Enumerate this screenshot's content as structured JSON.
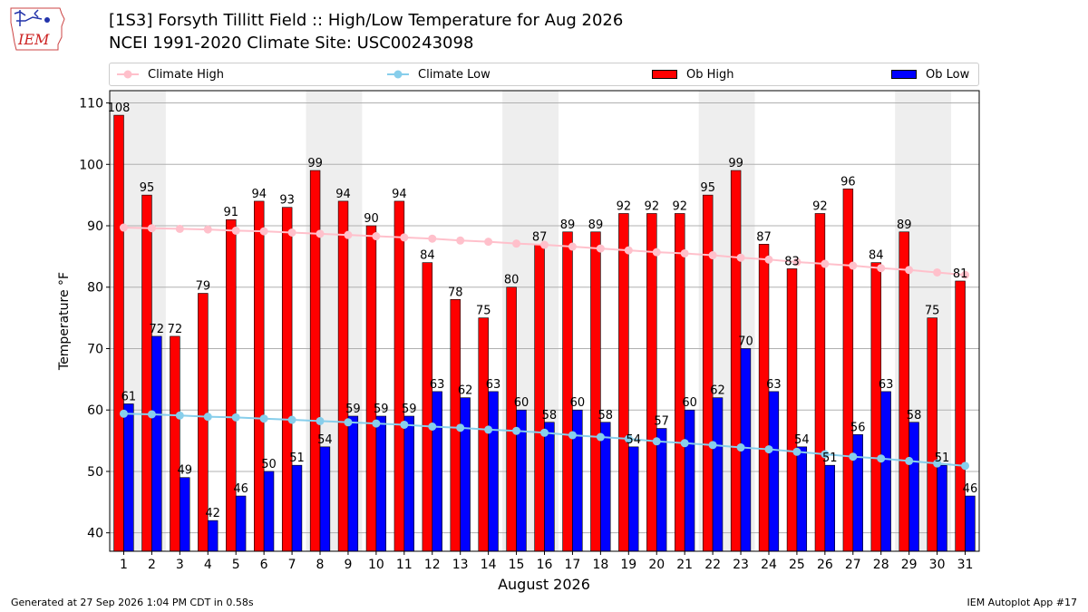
{
  "header": {
    "logo_text": "IEM",
    "title": "[1S3] Forsyth Tillitt Field :: High/Low Temperature for Aug 2026",
    "subtitle": "NCEI 1991-2020 Climate Site: USC00243098"
  },
  "footer": {
    "generated": "Generated at 27 Sep 2026 1:04 PM CDT in 0.58s",
    "app": "IEM Autoplot App #17"
  },
  "colors": {
    "ob_high": "#ff0000",
    "ob_low": "#0000ff",
    "climate_high": "#ffc0cb",
    "climate_low": "#87ceeb",
    "weekend_band": "#eeeeee",
    "grid": "#b0b0b0"
  },
  "chart_data": {
    "type": "bar",
    "xlabel": "August 2026",
    "ylabel": "Temperature °F",
    "ylim": [
      37,
      112
    ],
    "yticks": [
      40,
      50,
      60,
      70,
      80,
      90,
      100,
      110
    ],
    "x": [
      1,
      2,
      3,
      4,
      5,
      6,
      7,
      8,
      9,
      10,
      11,
      12,
      13,
      14,
      15,
      16,
      17,
      18,
      19,
      20,
      21,
      22,
      23,
      24,
      25,
      26,
      27,
      28,
      29,
      30,
      31
    ],
    "weekend_bands": [
      [
        1,
        2
      ],
      [
        8,
        9
      ],
      [
        15,
        16
      ],
      [
        22,
        23
      ],
      [
        29,
        30
      ]
    ],
    "grid": true,
    "legend_position": "top",
    "series": [
      {
        "name": "Climate High",
        "kind": "line",
        "values": [
          89.7,
          89.6,
          89.5,
          89.4,
          89.2,
          89.1,
          88.9,
          88.7,
          88.5,
          88.3,
          88.1,
          87.9,
          87.6,
          87.4,
          87.1,
          86.9,
          86.6,
          86.3,
          86.0,
          85.7,
          85.5,
          85.2,
          84.8,
          84.5,
          84.1,
          83.8,
          83.5,
          83.1,
          82.8,
          82.4,
          82.0
        ]
      },
      {
        "name": "Climate Low",
        "kind": "line",
        "values": [
          59.4,
          59.3,
          59.1,
          58.9,
          58.8,
          58.6,
          58.4,
          58.2,
          58.0,
          57.8,
          57.6,
          57.3,
          57.1,
          56.8,
          56.6,
          56.3,
          55.9,
          55.6,
          55.3,
          54.9,
          54.6,
          54.3,
          53.9,
          53.6,
          53.2,
          52.8,
          52.4,
          52.1,
          51.7,
          51.3,
          50.9
        ]
      },
      {
        "name": "Ob High",
        "kind": "bar",
        "values": [
          108,
          95,
          72,
          79,
          91,
          94,
          93,
          99,
          94,
          90,
          94,
          84,
          78,
          75,
          80,
          87,
          89,
          89,
          92,
          92,
          92,
          95,
          99,
          87,
          83,
          92,
          96,
          84,
          89,
          75,
          81
        ]
      },
      {
        "name": "Ob Low",
        "kind": "bar",
        "values": [
          61,
          72,
          49,
          42,
          46,
          50,
          51,
          54,
          59,
          59,
          59,
          63,
          62,
          63,
          60,
          58,
          60,
          58,
          54,
          57,
          60,
          62,
          70,
          63,
          54,
          51,
          56,
          63,
          58,
          51,
          46
        ]
      }
    ]
  }
}
